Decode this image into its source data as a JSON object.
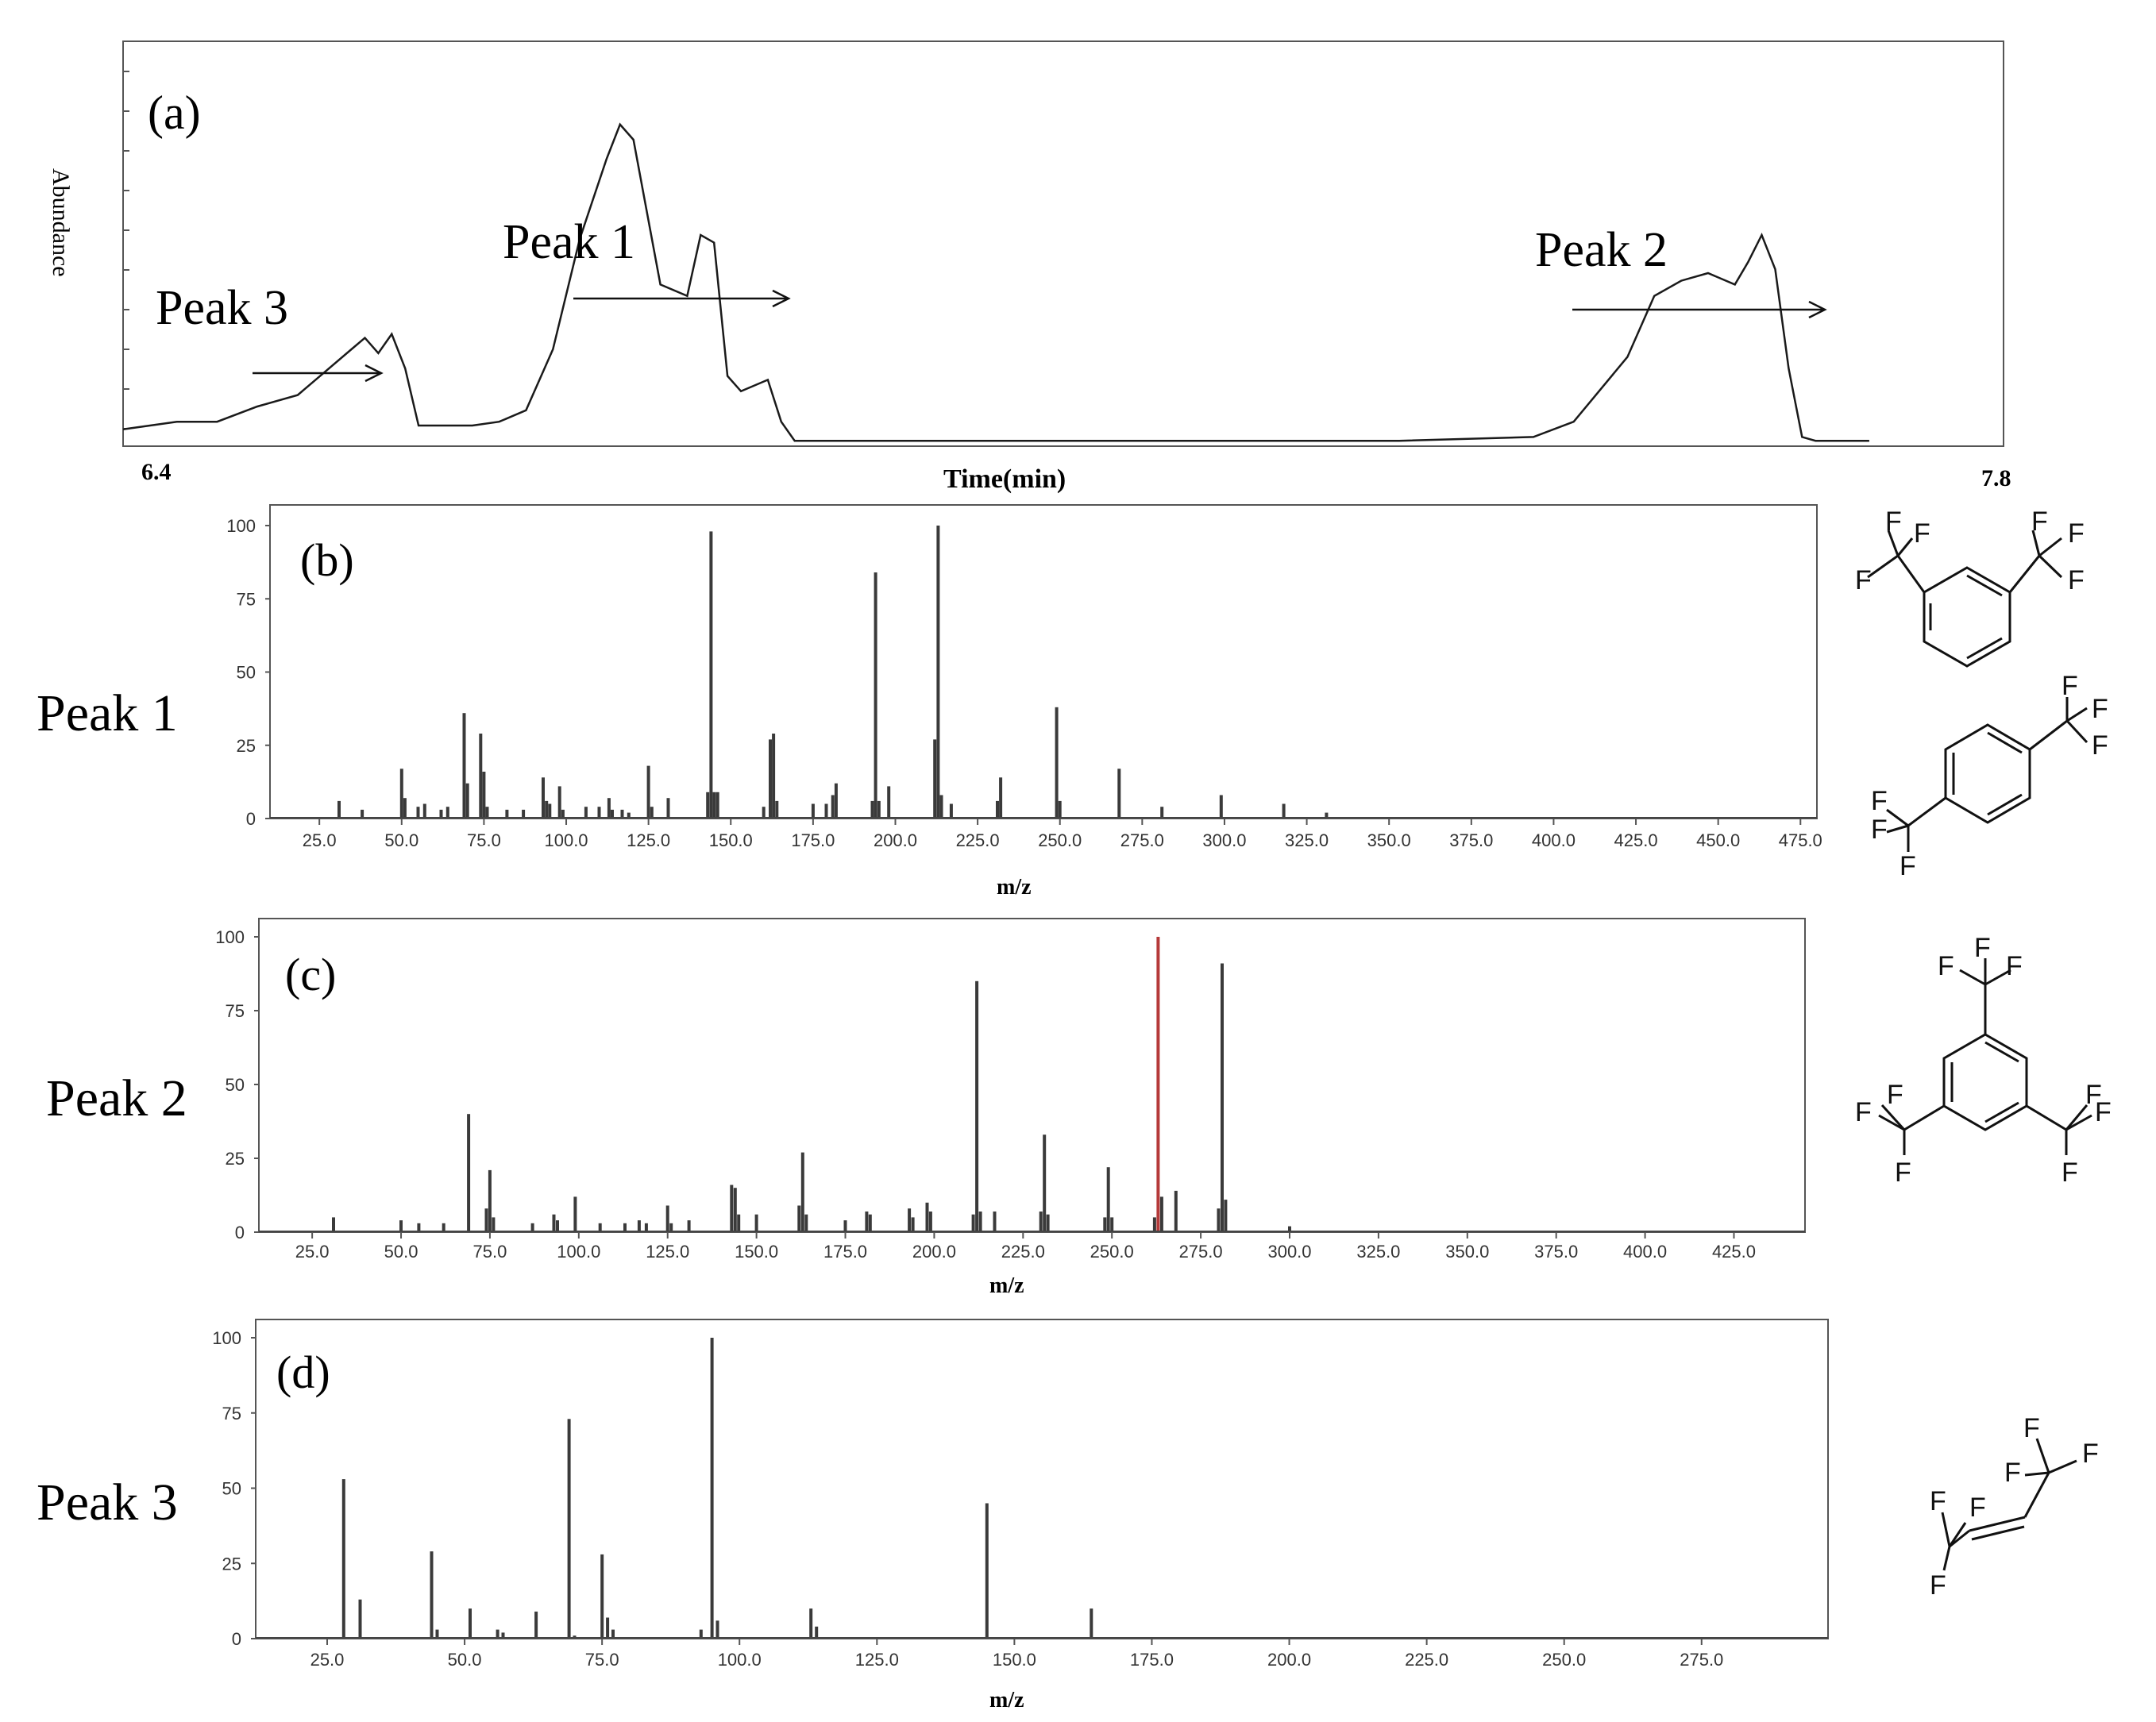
{
  "chart_data": [
    {
      "id": "a",
      "type": "line",
      "panel_label": "(a)",
      "xlabel": "Time(min)",
      "ylabel": "Abundance",
      "x_tick_labels": [
        "6.4",
        "7.8"
      ],
      "xlim": [
        6.4,
        7.8
      ],
      "ylim": [
        0,
        100
      ],
      "series": [
        {
          "x": [
            6.4,
            6.44,
            6.47,
            6.5,
            6.53,
            6.55,
            6.57,
            6.58,
            6.59,
            6.6,
            6.61,
            6.62,
            6.64,
            6.66,
            6.68,
            6.7,
            6.72,
            6.74,
            6.76,
            6.77,
            6.78,
            6.8,
            6.82,
            6.83,
            6.84,
            6.85,
            6.86,
            6.88,
            6.89,
            6.9,
            6.91,
            6.915,
            6.92,
            6.93,
            6.95,
            6.97,
            7.0,
            7.05,
            7.15,
            7.25,
            7.35,
            7.45,
            7.48,
            7.52,
            7.54,
            7.56,
            7.58,
            7.6,
            7.61,
            7.62,
            7.63,
            7.64,
            7.65,
            7.66,
            7.67,
            7.68,
            7.7
          ],
          "y": [
            4,
            6,
            6,
            10,
            13,
            19,
            25,
            28,
            24,
            29,
            20,
            5,
            5,
            5,
            6,
            9,
            25,
            54,
            75,
            84,
            80,
            42,
            39,
            55,
            53,
            18,
            14,
            17,
            6,
            1,
            1,
            1,
            1,
            1,
            1,
            1,
            1,
            1,
            1,
            1,
            1,
            2,
            6,
            23,
            39,
            43,
            45,
            42,
            48,
            55,
            46,
            20,
            2,
            1,
            1,
            1,
            1
          ]
        }
      ],
      "annotations": [
        {
          "text": "Peak 1",
          "arrow_to_x": 6.83,
          "arrow_to_y": 40
        },
        {
          "text": "Peak 2",
          "arrow_to_x": 7.62,
          "arrow_to_y": 35
        },
        {
          "text": "Peak 3",
          "arrow_to_x": 6.57,
          "arrow_to_y": 18
        }
      ]
    },
    {
      "id": "b",
      "type": "bar",
      "panel_label": "(b)",
      "row_label": "Peak 1",
      "xlabel": "m/z",
      "xlim": [
        10,
        480
      ],
      "ylim": [
        0,
        105
      ],
      "x_tick_labels": [
        "25.0",
        "50.0",
        "75.0",
        "100.0",
        "125.0",
        "150.0",
        "175.0",
        "200.0",
        "225.0",
        "250.0",
        "275.0",
        "300.0",
        "325.0",
        "350.0",
        "375.0",
        "400.0",
        "425.0",
        "450.0",
        "475.0"
      ],
      "y_tick_labels": [
        "0",
        "25",
        "50",
        "75",
        "100"
      ],
      "peaks": {
        "x": [
          31,
          38,
          50,
          51,
          55,
          57,
          62,
          64,
          69,
          70,
          74,
          75,
          76,
          82,
          87,
          93,
          94,
          95,
          98,
          99,
          106,
          110,
          113,
          114,
          117,
          119,
          125,
          126,
          131,
          143,
          144,
          145,
          146,
          160,
          162,
          163,
          164,
          175,
          179,
          181,
          182,
          193,
          194,
          195,
          198,
          212,
          213,
          214,
          217,
          231,
          232,
          249,
          250,
          268,
          281,
          299,
          318,
          331
        ],
        "y": [
          6,
          3,
          17,
          7,
          4,
          5,
          3,
          4,
          36,
          12,
          29,
          16,
          4,
          3,
          3,
          14,
          6,
          5,
          11,
          3,
          4,
          4,
          7,
          3,
          3,
          2,
          18,
          4,
          7,
          9,
          98,
          9,
          9,
          4,
          27,
          29,
          6,
          5,
          5,
          8,
          12,
          6,
          84,
          6,
          11,
          27,
          100,
          8,
          5,
          6,
          14,
          38,
          6,
          17,
          4,
          8,
          5,
          2
        ]
      },
      "structures": [
        "1,3-bis(trifluoromethyl)benzene",
        "1,4-bis(trifluoromethyl)benzene"
      ]
    },
    {
      "id": "c",
      "type": "bar",
      "panel_label": "(c)",
      "row_label": "Peak 2",
      "xlabel": "m/z",
      "xlim": [
        10,
        445
      ],
      "ylim": [
        0,
        105
      ],
      "x_tick_labels": [
        "25.0",
        "50.0",
        "75.0",
        "100.0",
        "125.0",
        "150.0",
        "175.0",
        "200.0",
        "225.0",
        "250.0",
        "275.0",
        "300.0",
        "325.0",
        "350.0",
        "375.0",
        "400.0",
        "425.0"
      ],
      "y_tick_labels": [
        "0",
        "25",
        "50",
        "75",
        "100"
      ],
      "peaks": {
        "x": [
          31,
          50,
          55,
          62,
          69,
          74,
          75,
          76,
          87,
          93,
          94,
          99,
          106,
          113,
          117,
          119,
          125,
          126,
          131,
          143,
          144,
          145,
          150,
          162,
          163,
          164,
          175,
          181,
          182,
          193,
          194,
          198,
          199,
          211,
          212,
          213,
          217,
          230,
          231,
          232,
          248,
          249,
          250,
          262,
          263,
          264,
          268,
          280,
          281,
          282,
          300
        ],
        "y": [
          5,
          4,
          3,
          3,
          40,
          8,
          21,
          5,
          3,
          6,
          4,
          12,
          3,
          3,
          4,
          3,
          9,
          3,
          4,
          16,
          15,
          6,
          6,
          9,
          27,
          6,
          4,
          7,
          6,
          8,
          5,
          10,
          7,
          6,
          85,
          7,
          7,
          7,
          33,
          6,
          5,
          22,
          5,
          5,
          100,
          12,
          14,
          8,
          91,
          11,
          2
        ],
        "highlight_x": 263,
        "highlight_color": "#b53a3a"
      },
      "structures": [
        "1,3,5-tris(trifluoromethyl)benzene"
      ]
    },
    {
      "id": "d",
      "type": "bar",
      "panel_label": "(d)",
      "row_label": "Peak 3",
      "xlabel": "m/z",
      "xlim": [
        12,
        298
      ],
      "ylim": [
        0,
        105
      ],
      "x_tick_labels": [
        "25.0",
        "50.0",
        "75.0",
        "100.0",
        "125.0",
        "150.0",
        "175.0",
        "200.0",
        "225.0",
        "250.0",
        "275.0"
      ],
      "y_tick_labels": [
        "0",
        "25",
        "50",
        "75",
        "100"
      ],
      "peaks": {
        "x": [
          28,
          31,
          44,
          45,
          51,
          56,
          57,
          63,
          69,
          70,
          75,
          76,
          77,
          93,
          95,
          96,
          113,
          114,
          145,
          164
        ],
        "y": [
          53,
          13,
          29,
          3,
          10,
          3,
          2,
          9,
          73,
          1,
          28,
          7,
          3,
          3,
          100,
          6,
          10,
          4,
          45,
          10
        ]
      },
      "structures": [
        "1,1,1,4,4,4-hexafluoro-2-butene"
      ]
    }
  ],
  "structure_atom_label": "F",
  "colors": {
    "axis": "#555555",
    "bars": "#3a3a3a",
    "trace": "#1a1a1a",
    "highlight": "#b53a3a",
    "background": "#ffffff"
  }
}
